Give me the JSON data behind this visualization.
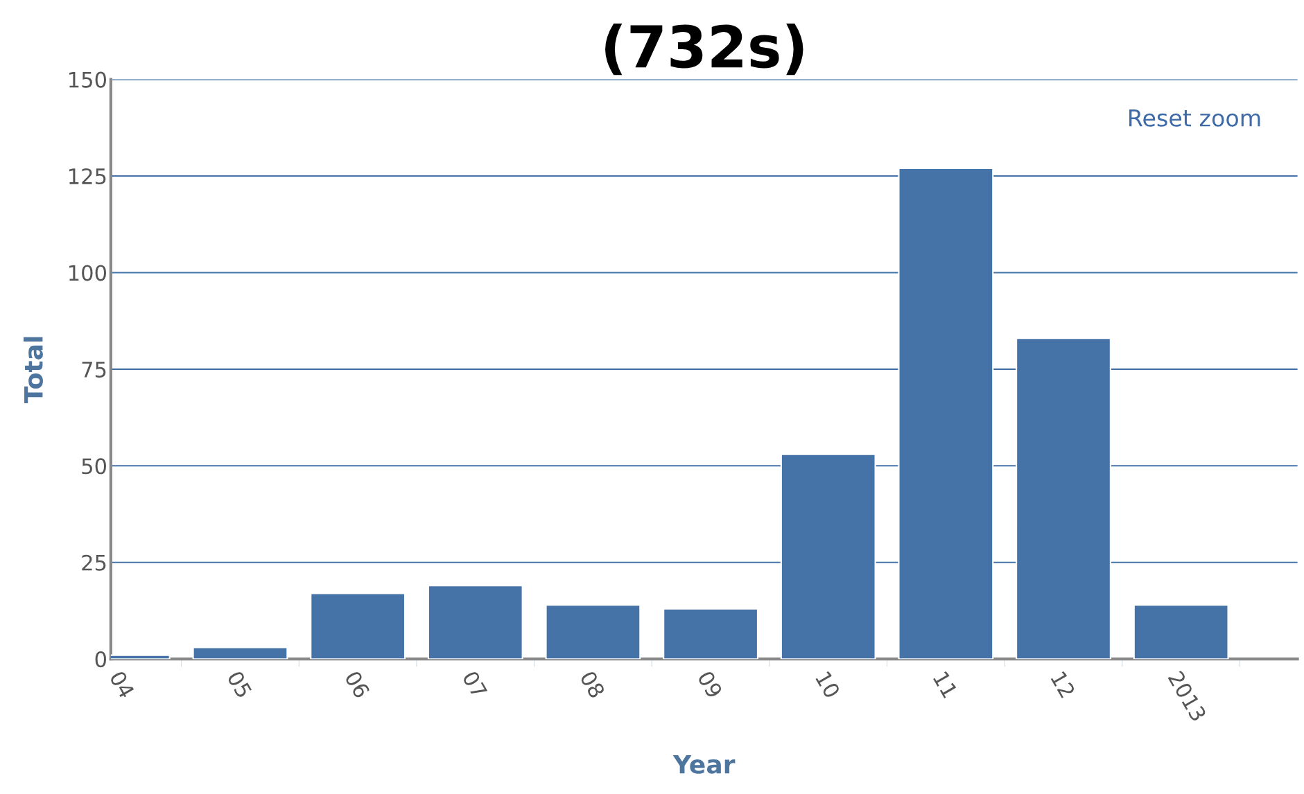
{
  "chart_data": {
    "type": "bar",
    "title": "(732s)",
    "xlabel": "Year",
    "ylabel": "Total",
    "categories": [
      "04",
      "05",
      "06",
      "07",
      "08",
      "09",
      "10",
      "11",
      "12",
      "2013"
    ],
    "values": [
      1,
      3,
      17,
      19,
      14,
      13,
      53,
      127,
      83,
      14
    ],
    "color": "#4572a7",
    "ylim": [
      0,
      150
    ],
    "yticks": [
      0,
      25,
      50,
      75,
      100,
      125,
      150
    ],
    "grid": "y",
    "annotations": [
      "Reset zoom"
    ]
  }
}
